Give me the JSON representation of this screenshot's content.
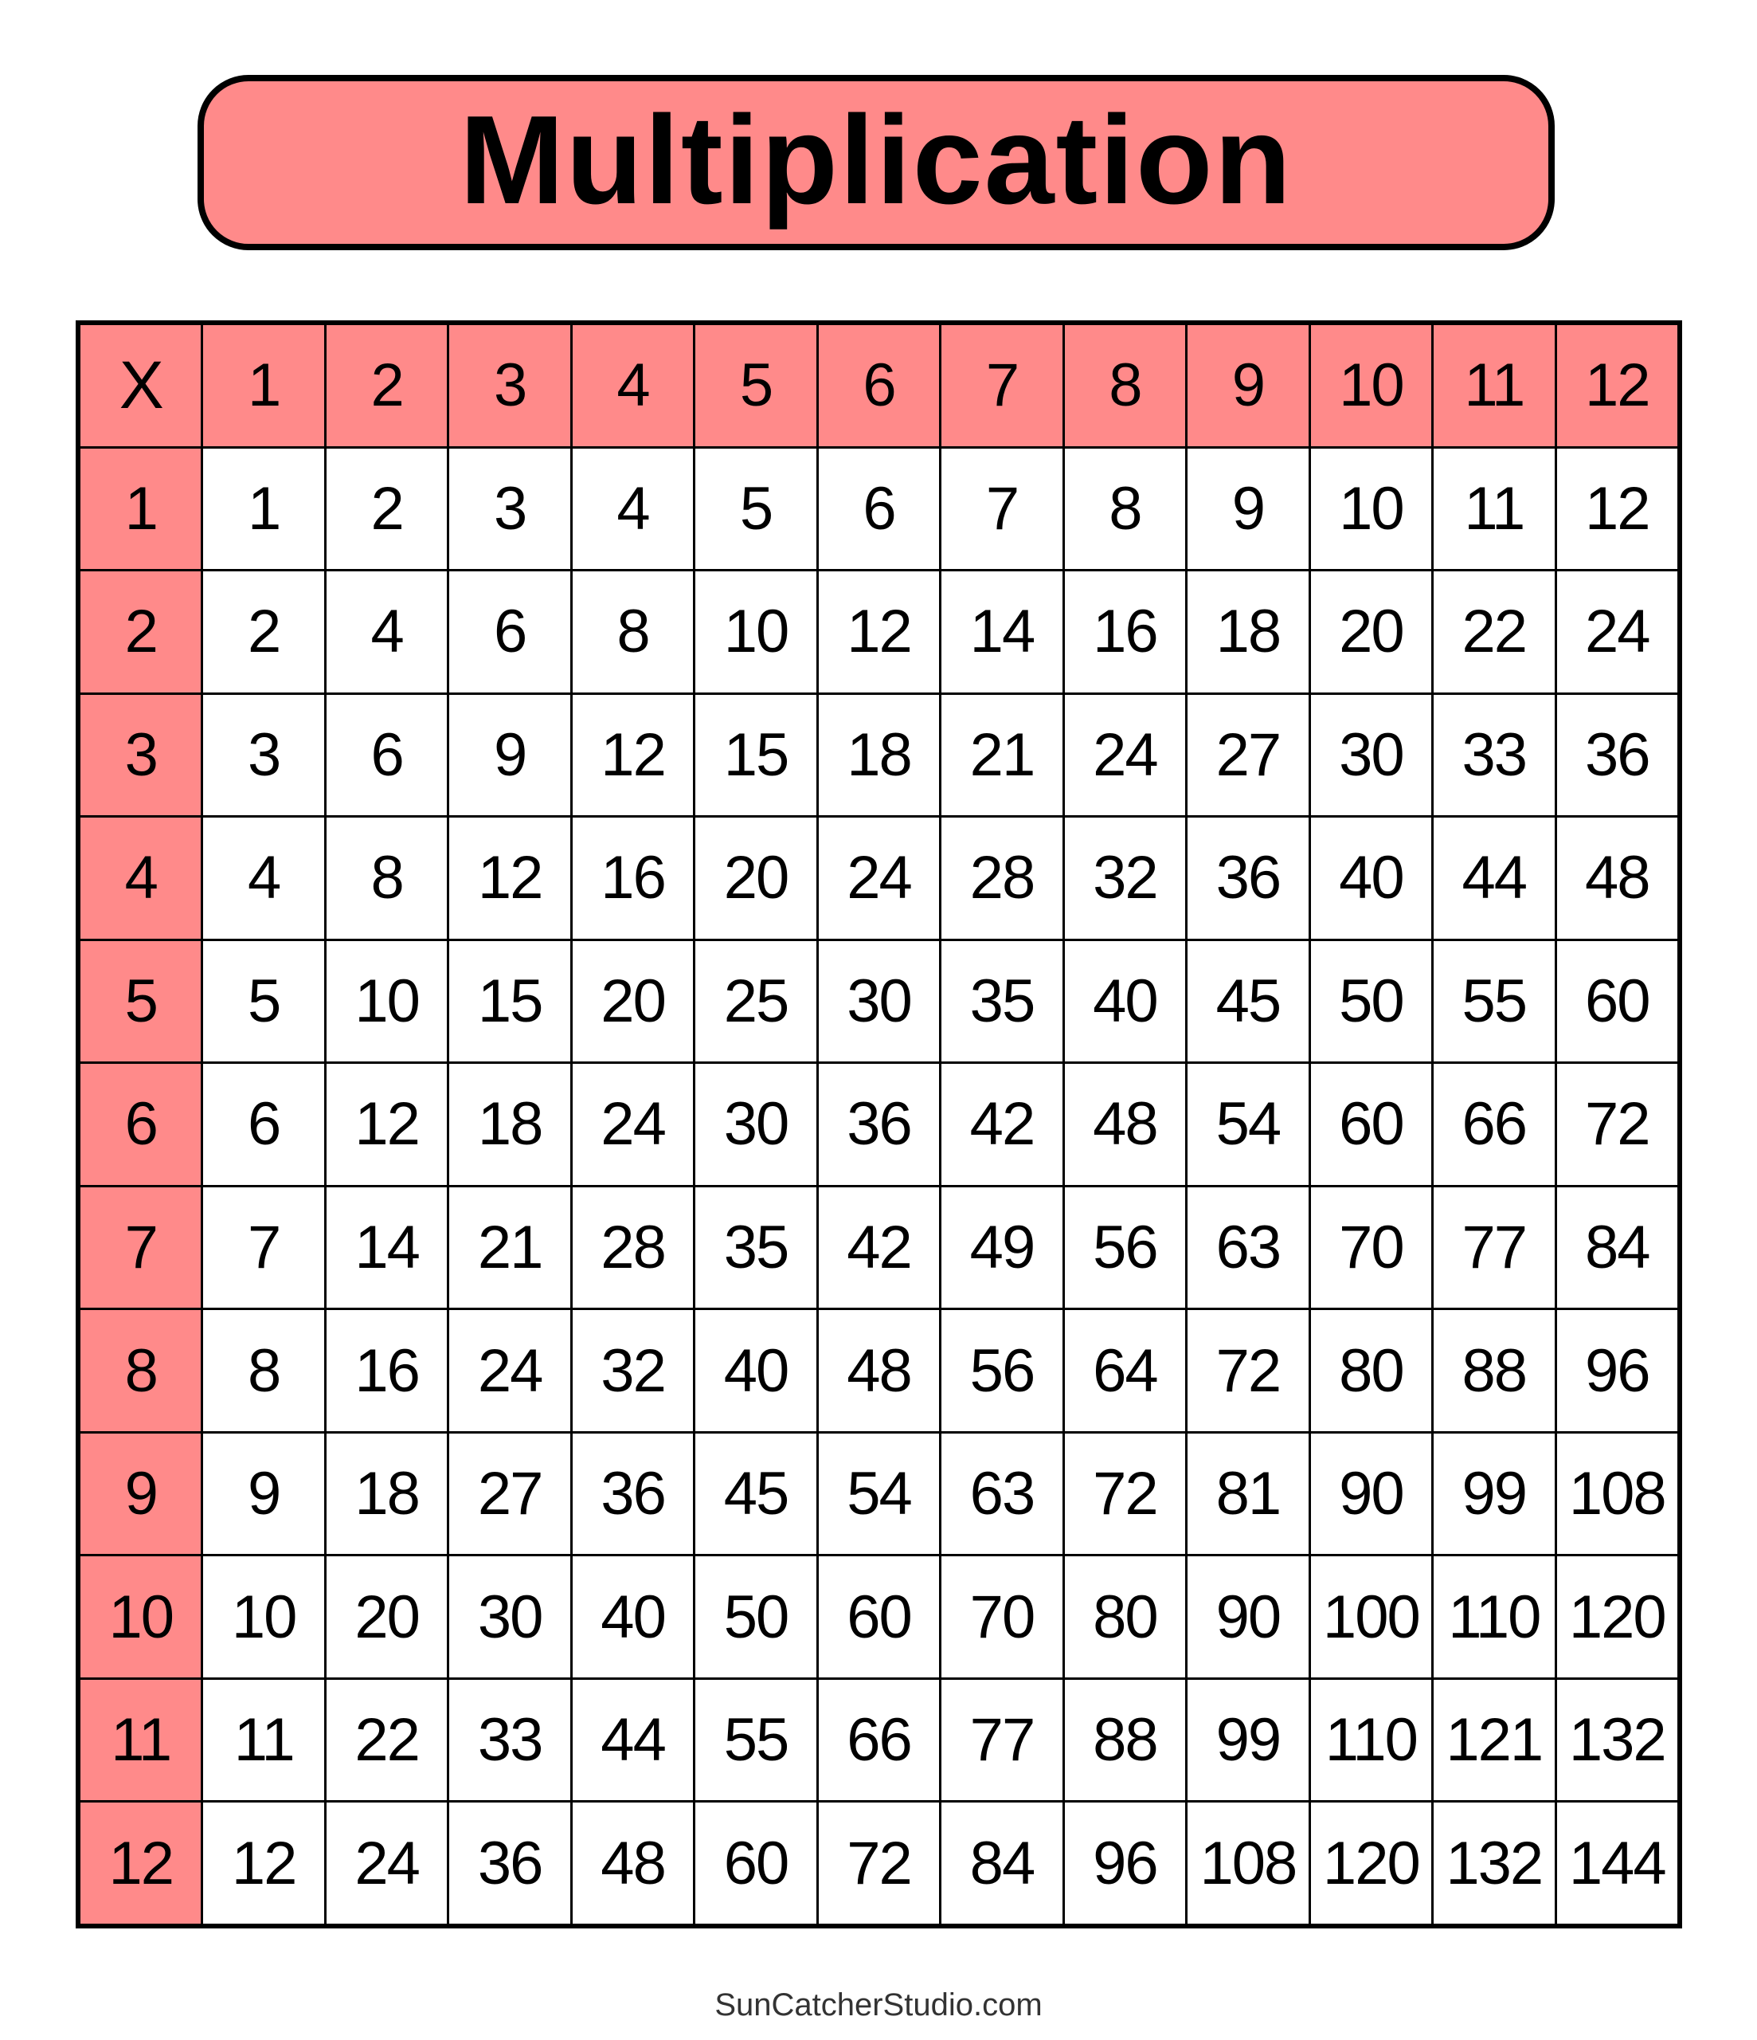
{
  "title": "Multiplication",
  "footer": "SunCatcherStudio.com",
  "colors": {
    "header_fill": "#ff8a8a",
    "border": "#000000",
    "cell_fill": "#ffffff"
  },
  "table": {
    "corner": "X",
    "column_headers": [
      "1",
      "2",
      "3",
      "4",
      "5",
      "6",
      "7",
      "8",
      "9",
      "10",
      "11",
      "12"
    ],
    "row_headers": [
      "1",
      "2",
      "3",
      "4",
      "5",
      "6",
      "7",
      "8",
      "9",
      "10",
      "11",
      "12"
    ],
    "rows": [
      [
        "1",
        "2",
        "3",
        "4",
        "5",
        "6",
        "7",
        "8",
        "9",
        "10",
        "11",
        "12"
      ],
      [
        "2",
        "4",
        "6",
        "8",
        "10",
        "12",
        "14",
        "16",
        "18",
        "20",
        "22",
        "24"
      ],
      [
        "3",
        "6",
        "9",
        "12",
        "15",
        "18",
        "21",
        "24",
        "27",
        "30",
        "33",
        "36"
      ],
      [
        "4",
        "8",
        "12",
        "16",
        "20",
        "24",
        "28",
        "32",
        "36",
        "40",
        "44",
        "48"
      ],
      [
        "5",
        "10",
        "15",
        "20",
        "25",
        "30",
        "35",
        "40",
        "45",
        "50",
        "55",
        "60"
      ],
      [
        "6",
        "12",
        "18",
        "24",
        "30",
        "36",
        "42",
        "48",
        "54",
        "60",
        "66",
        "72"
      ],
      [
        "7",
        "14",
        "21",
        "28",
        "35",
        "42",
        "49",
        "56",
        "63",
        "70",
        "77",
        "84"
      ],
      [
        "8",
        "16",
        "24",
        "32",
        "40",
        "48",
        "56",
        "64",
        "72",
        "80",
        "88",
        "96"
      ],
      [
        "9",
        "18",
        "27",
        "36",
        "45",
        "54",
        "63",
        "72",
        "81",
        "90",
        "99",
        "108"
      ],
      [
        "10",
        "20",
        "30",
        "40",
        "50",
        "60",
        "70",
        "80",
        "90",
        "100",
        "110",
        "120"
      ],
      [
        "11",
        "22",
        "33",
        "44",
        "55",
        "66",
        "77",
        "88",
        "99",
        "110",
        "121",
        "132"
      ],
      [
        "12",
        "24",
        "36",
        "48",
        "60",
        "72",
        "84",
        "96",
        "108",
        "120",
        "132",
        "144"
      ]
    ]
  }
}
